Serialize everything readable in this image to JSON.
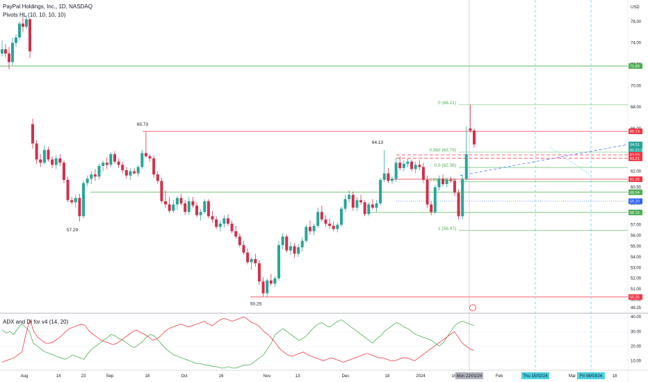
{
  "header": {
    "title": "PayPal Holdings, Inc., 1D, NASDAQ",
    "indicator1": "Pivots HL (10, 10, 10, 10)",
    "indicator2": "ADX and DI for v4 (14, 20)",
    "currency": "USD"
  },
  "colors": {
    "up": "#26a69a",
    "down": "#d32f4a",
    "green": "#4caf50",
    "red": "#f23645",
    "blue": "#2962ff"
  },
  "chart_data": {
    "type": "candlestick",
    "price_axis": {
      "ticks": [
        "76.00",
        "74.00",
        "72.00",
        "70.00",
        "68.00",
        "66.00",
        "64.00",
        "62.00",
        "60.50",
        "59.00",
        "57.00",
        "56.00",
        "55.00",
        "54.00",
        "53.00",
        "52.00",
        "51.00",
        "50.00",
        "49.25"
      ],
      "tick_values": [
        76,
        74,
        72,
        70,
        68,
        66,
        64,
        62,
        60.5,
        59,
        57,
        56,
        55,
        54,
        53,
        52,
        51,
        50,
        49.25
      ],
      "ylim": [
        48.8,
        78.0
      ]
    },
    "time_axis": [
      "Aug",
      "14",
      "23",
      "Sep",
      "18",
      "Oct",
      "16",
      "Nov",
      "13",
      "Dec",
      "18",
      "2024",
      "16",
      "Feb",
      "Mar",
      "18"
    ],
    "date_tags": [
      "Mon 22/01/24",
      "Thu 15/02/24",
      "Fri 08/03/24"
    ],
    "price_tags": [
      {
        "label": "71.83",
        "color": "green"
      },
      {
        "label": "65.73",
        "color": "red"
      },
      {
        "label": "64.51",
        "color": "up"
      },
      {
        "label": "63.53",
        "color": "red"
      },
      {
        "label": "63.21",
        "color": "red"
      },
      {
        "label": "61.26",
        "color": "red"
      },
      {
        "label": "60.04",
        "color": "green"
      },
      {
        "label": "59.20",
        "color": "blue"
      },
      {
        "label": "58.15",
        "color": "green"
      },
      {
        "label": "50.25",
        "color": "red"
      }
    ],
    "last_price_sub": "01:21:15",
    "pivot_labels": [
      "65.73",
      "57.29",
      "64.13",
      "50.25"
    ],
    "fib_labels": [
      "0 (68.21)",
      "0.382 (63.79)",
      "0.5 (62.36)",
      "0.618 (61.01)",
      "1 (56.47)"
    ],
    "pivot_levels": [
      {
        "price": 71.83,
        "color": "green"
      },
      {
        "price": 65.73,
        "color": "red"
      },
      {
        "price": 60.04,
        "color": "green"
      },
      {
        "price": 58.15,
        "color": "green"
      },
      {
        "price": 50.25,
        "color": "red"
      }
    ],
    "fib_levels": [
      68.21,
      63.79,
      62.36,
      61.01,
      56.47
    ],
    "candles": [
      [
        73.0,
        74.2,
        72.7,
        73.4
      ],
      [
        73.4,
        73.9,
        72.6,
        73.0
      ],
      [
        73.0,
        73.6,
        71.5,
        72.2
      ],
      [
        72.2,
        74.5,
        71.9,
        74.0
      ],
      [
        74.0,
        74.8,
        73.6,
        74.5
      ],
      [
        74.5,
        76.0,
        74.2,
        75.8
      ],
      [
        75.8,
        76.4,
        75.0,
        75.5
      ],
      [
        75.5,
        76.6,
        75.3,
        76.2
      ],
      [
        76.2,
        76.3,
        72.6,
        73.2
      ],
      [
        66.4,
        66.9,
        64.1,
        64.6
      ],
      [
        64.6,
        64.9,
        62.7,
        63.1
      ],
      [
        63.1,
        63.6,
        62.4,
        62.8
      ],
      [
        62.8,
        64.4,
        62.6,
        64.0
      ],
      [
        64.0,
        64.3,
        62.9,
        63.1
      ],
      [
        63.1,
        63.4,
        62.3,
        62.6
      ],
      [
        62.6,
        63.5,
        62.2,
        63.2
      ],
      [
        63.2,
        63.6,
        62.5,
        62.8
      ],
      [
        62.8,
        63.0,
        60.9,
        61.2
      ],
      [
        61.2,
        61.5,
        59.1,
        59.3
      ],
      [
        59.3,
        59.6,
        58.9,
        59.1
      ],
      [
        59.1,
        59.8,
        58.6,
        59.5
      ],
      [
        59.5,
        59.9,
        57.3,
        57.8
      ],
      [
        57.8,
        61.1,
        57.6,
        60.9
      ],
      [
        60.9,
        61.6,
        60.6,
        61.3
      ],
      [
        61.3,
        62.0,
        60.8,
        61.7
      ],
      [
        61.7,
        62.2,
        61.1,
        61.5
      ],
      [
        61.5,
        62.7,
        61.2,
        62.5
      ],
      [
        62.5,
        63.0,
        62.0,
        62.8
      ],
      [
        62.8,
        63.3,
        62.2,
        62.6
      ],
      [
        62.6,
        63.8,
        62.4,
        63.6
      ],
      [
        63.6,
        63.9,
        62.7,
        62.9
      ],
      [
        62.9,
        63.2,
        62.3,
        62.6
      ],
      [
        62.6,
        62.9,
        61.8,
        62.1
      ],
      [
        62.1,
        62.4,
        61.3,
        61.6
      ],
      [
        61.6,
        62.3,
        61.2,
        62.0
      ],
      [
        62.0,
        62.3,
        61.7,
        61.8
      ],
      [
        61.8,
        62.6,
        61.5,
        62.4
      ],
      [
        62.4,
        64.0,
        62.2,
        63.7
      ],
      [
        63.7,
        65.7,
        63.3,
        63.4
      ],
      [
        63.4,
        63.6,
        62.9,
        63.2
      ],
      [
        63.2,
        63.5,
        61.4,
        61.7
      ],
      [
        61.7,
        62.0,
        60.8,
        61.1
      ],
      [
        61.1,
        61.4,
        59.0,
        59.2
      ],
      [
        59.2,
        60.2,
        58.6,
        58.9
      ],
      [
        58.9,
        59.6,
        58.1,
        58.3
      ],
      [
        58.3,
        59.3,
        58.1,
        58.9
      ],
      [
        58.9,
        59.7,
        58.4,
        59.5
      ],
      [
        59.5,
        59.9,
        58.8,
        59.0
      ],
      [
        59.0,
        59.3,
        57.9,
        58.2
      ],
      [
        58.2,
        59.6,
        57.9,
        59.2
      ],
      [
        59.2,
        59.6,
        58.6,
        58.8
      ],
      [
        58.8,
        59.1,
        57.7,
        57.9
      ],
      [
        57.9,
        58.5,
        57.4,
        58.2
      ],
      [
        58.2,
        59.4,
        58.0,
        59.2
      ],
      [
        59.2,
        59.4,
        57.6,
        57.8
      ],
      [
        57.8,
        58.3,
        57.2,
        57.5
      ],
      [
        57.5,
        57.8,
        56.6,
        56.8
      ],
      [
        56.8,
        57.4,
        56.4,
        57.1
      ],
      [
        57.1,
        57.9,
        56.7,
        57.6
      ],
      [
        57.6,
        58.0,
        56.9,
        57.1
      ],
      [
        57.1,
        57.4,
        56.2,
        56.4
      ],
      [
        56.4,
        56.9,
        55.7,
        55.9
      ],
      [
        55.9,
        56.2,
        54.9,
        55.1
      ],
      [
        55.1,
        55.5,
        54.2,
        54.4
      ],
      [
        54.4,
        54.8,
        53.3,
        53.5
      ],
      [
        53.5,
        54.0,
        52.8,
        53.8
      ],
      [
        53.8,
        54.3,
        53.1,
        53.4
      ],
      [
        53.4,
        53.7,
        51.4,
        51.7
      ],
      [
        51.7,
        52.1,
        50.3,
        50.6
      ],
      [
        50.6,
        52.0,
        50.25,
        51.8
      ],
      [
        51.8,
        52.4,
        51.3,
        51.5
      ],
      [
        51.5,
        52.2,
        51.2,
        52.0
      ],
      [
        52.0,
        55.5,
        51.8,
        55.1
      ],
      [
        55.1,
        56.2,
        54.7,
        55.9
      ],
      [
        55.9,
        56.1,
        54.4,
        54.6
      ],
      [
        54.6,
        55.4,
        54.2,
        55.0
      ],
      [
        55.0,
        55.3,
        53.9,
        54.3
      ],
      [
        54.3,
        55.2,
        54.0,
        54.9
      ],
      [
        54.9,
        55.8,
        54.5,
        55.5
      ],
      [
        55.5,
        57.0,
        55.3,
        56.8
      ],
      [
        56.8,
        57.4,
        56.1,
        56.4
      ],
      [
        56.4,
        57.1,
        56.0,
        56.9
      ],
      [
        56.9,
        58.6,
        56.7,
        58.2
      ],
      [
        58.2,
        58.8,
        57.3,
        57.5
      ],
      [
        57.5,
        57.9,
        56.8,
        57.1
      ],
      [
        57.1,
        57.6,
        56.6,
        56.9
      ],
      [
        56.9,
        57.3,
        56.4,
        56.6
      ],
      [
        56.6,
        57.2,
        56.3,
        57.0
      ],
      [
        57.0,
        58.7,
        56.8,
        58.5
      ],
      [
        58.5,
        59.8,
        58.2,
        59.4
      ],
      [
        59.4,
        60.2,
        59.1,
        59.8
      ],
      [
        59.8,
        60.1,
        58.3,
        58.6
      ],
      [
        58.6,
        59.6,
        58.3,
        59.3
      ],
      [
        59.3,
        59.8,
        58.9,
        59.1
      ],
      [
        59.1,
        59.3,
        57.8,
        58.0
      ],
      [
        58.0,
        59.1,
        57.8,
        58.9
      ],
      [
        58.9,
        59.4,
        58.4,
        58.6
      ],
      [
        58.6,
        59.3,
        58.2,
        59.0
      ],
      [
        59.0,
        61.4,
        58.8,
        61.2
      ],
      [
        61.2,
        64.0,
        61.0,
        61.8
      ],
      [
        61.8,
        62.3,
        60.9,
        61.1
      ],
      [
        61.1,
        61.5,
        60.8,
        61.3
      ],
      [
        61.3,
        63.2,
        61.0,
        62.8
      ],
      [
        62.8,
        63.4,
        62.1,
        62.3
      ],
      [
        62.3,
        63.0,
        62.0,
        62.7
      ],
      [
        62.7,
        63.2,
        62.4,
        62.9
      ],
      [
        62.9,
        63.1,
        62.0,
        62.2
      ],
      [
        62.2,
        62.9,
        61.8,
        62.6
      ],
      [
        62.6,
        63.0,
        62.1,
        62.4
      ],
      [
        62.4,
        62.8,
        60.9,
        61.2
      ],
      [
        61.2,
        61.6,
        58.6,
        58.9
      ],
      [
        58.9,
        59.2,
        57.9,
        58.2
      ],
      [
        58.2,
        60.7,
        58.0,
        60.5
      ],
      [
        60.5,
        61.6,
        60.2,
        61.3
      ],
      [
        61.3,
        61.7,
        60.6,
        60.8
      ],
      [
        60.8,
        61.4,
        60.5,
        61.2
      ],
      [
        61.2,
        61.5,
        60.9,
        61.1
      ],
      [
        61.1,
        61.3,
        59.7,
        60.0
      ],
      [
        60.0,
        60.3,
        57.5,
        57.8
      ],
      [
        57.8,
        61.6,
        57.5,
        61.3
      ],
      [
        61.3,
        66.2,
        61.1,
        63.6
      ],
      [
        66.0,
        68.21,
        65.6,
        65.8
      ],
      [
        65.8,
        66.0,
        64.2,
        64.51
      ]
    ],
    "projection": [
      [
        64.51,
        63.4
      ],
      [
        66.6,
        64.8
      ]
    ],
    "adx": {
      "axis_ticks": [
        "40.00",
        "30.00",
        "20.00",
        "10.00"
      ],
      "tick_values": [
        40,
        30,
        20,
        10
      ],
      "ylim": [
        4,
        42
      ],
      "di_plus": [
        31,
        29,
        30,
        28,
        32,
        35,
        33,
        30,
        22,
        20,
        18,
        16,
        15,
        14,
        13,
        12,
        11,
        12,
        14,
        13,
        12,
        11,
        15,
        18,
        20,
        22,
        24,
        26,
        28,
        27,
        25,
        24,
        22,
        20,
        19,
        21,
        23,
        26,
        28,
        27,
        24,
        21,
        18,
        16,
        14,
        13,
        12,
        11,
        10,
        9,
        8,
        8,
        7,
        7,
        6,
        6,
        5,
        5,
        6,
        5,
        5,
        6,
        7,
        7,
        8,
        10,
        12,
        14,
        18,
        22,
        28,
        30,
        32,
        30,
        28,
        26,
        24,
        25,
        27,
        30,
        33,
        35,
        36,
        34,
        33,
        35,
        37,
        38,
        36,
        34,
        32,
        30,
        28,
        26,
        24,
        22,
        25,
        27,
        30,
        32,
        34,
        36,
        35,
        33,
        32,
        30,
        28,
        27,
        26,
        25,
        24,
        22,
        20,
        22,
        26,
        30,
        34,
        36,
        37,
        36,
        35,
        34
      ],
      "di_minus": [
        9,
        10,
        11,
        12,
        14,
        16,
        28,
        38,
        30,
        26,
        24,
        22,
        22,
        23,
        25,
        27,
        30,
        32,
        33,
        34,
        35,
        34,
        30,
        28,
        26,
        24,
        23,
        22,
        21,
        22,
        24,
        26,
        28,
        30,
        31,
        29,
        28,
        26,
        24,
        25,
        27,
        30,
        32,
        33,
        34,
        35,
        34,
        33,
        34,
        35,
        36,
        37,
        35,
        34,
        36,
        38,
        39,
        38,
        37,
        38,
        39,
        40,
        38,
        36,
        35,
        33,
        30,
        28,
        25,
        22,
        18,
        16,
        14,
        13,
        14,
        15,
        16,
        14,
        13,
        12,
        11,
        10,
        11,
        12,
        11,
        10,
        9,
        10,
        11,
        12,
        13,
        14,
        15,
        14,
        13,
        12,
        12,
        11,
        10,
        10,
        11,
        12,
        12,
        11,
        10,
        12,
        14,
        16,
        18,
        20,
        22,
        24,
        26,
        28,
        30,
        26,
        22,
        20,
        18,
        17
      ],
      "adx": [
        20,
        19,
        18,
        17,
        18,
        19,
        20,
        22,
        23,
        22,
        21,
        20,
        19,
        18,
        18,
        19,
        20,
        21,
        22,
        23,
        24,
        23,
        22,
        21,
        20,
        19,
        19,
        20,
        21,
        22,
        23,
        24,
        25,
        24,
        23,
        22,
        21,
        20,
        19,
        19,
        20,
        21,
        22,
        23,
        24,
        25,
        26,
        27,
        28,
        29,
        30,
        31,
        30,
        29,
        28,
        27,
        26,
        25,
        24,
        23,
        22,
        21,
        20,
        19,
        18,
        17,
        16,
        15,
        14,
        13,
        12,
        11,
        10,
        9,
        9,
        10,
        11,
        12,
        13,
        14,
        15,
        14,
        13,
        12,
        12,
        13,
        14,
        15,
        16,
        15,
        14,
        13,
        13,
        14,
        15,
        16,
        15,
        14,
        13,
        12,
        11,
        12,
        13,
        14,
        15,
        16,
        17,
        16,
        15,
        14,
        13,
        12,
        12,
        13,
        14,
        15,
        16,
        17,
        18,
        19
      ]
    }
  }
}
